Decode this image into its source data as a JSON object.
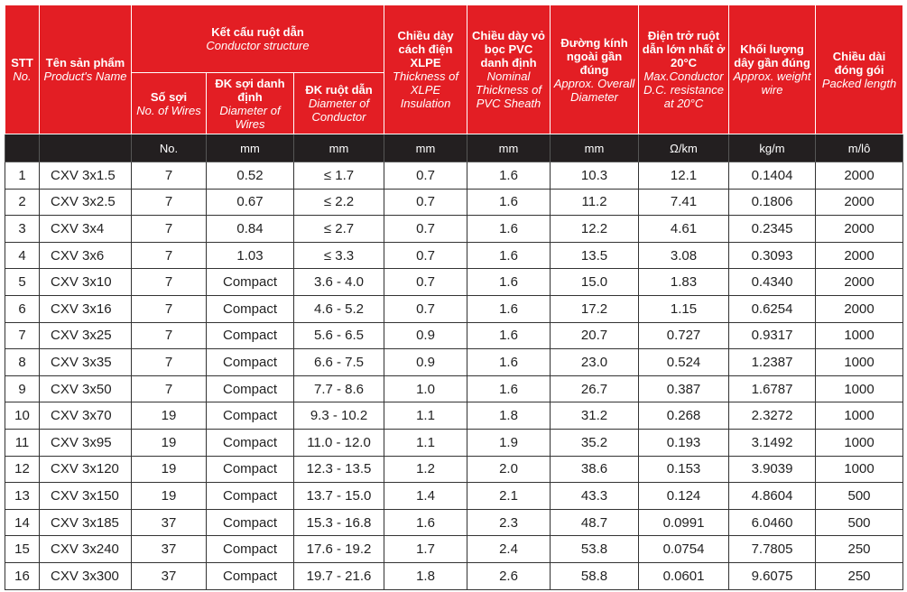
{
  "header": {
    "stt": {
      "vi": "STT",
      "en": "No."
    },
    "name": {
      "vi": "Tên sản phẩm",
      "en": "Product's Name"
    },
    "conductor": {
      "vi": "Kết cấu ruột dẫn",
      "en": "Conductor structure"
    },
    "wires": {
      "vi": "Số sợi",
      "en": "No. of Wires"
    },
    "wire_dia": {
      "vi": "ĐK sợi danh định",
      "en": "Diameter of Wires"
    },
    "cond_dia": {
      "vi": "ĐK ruột dẫn",
      "en": "Diameter of Conductor"
    },
    "xlpe": {
      "vi": "Chiều dày cách điện XLPE",
      "en": "Thickness of XLPE Insulation"
    },
    "pvc": {
      "vi": "Chiều dày vỏ bọc PVC danh định",
      "en": "Nominal Thickness of PVC Sheath"
    },
    "overall": {
      "vi": "Đường kính ngoài gần đúng",
      "en": "Approx. Overall Diameter"
    },
    "resistance": {
      "vi": "Điện trở ruột dẫn lớn nhất ở 20°C",
      "en": "Max.Conductor D.C. resistance at 20°C"
    },
    "weight": {
      "vi": "Khối lượng dây gần đúng",
      "en": "Approx. weight wire"
    },
    "length": {
      "vi": "Chiều dài đóng gói",
      "en": "Packed length"
    }
  },
  "units": [
    "No.",
    "mm",
    "mm",
    "mm",
    "mm",
    "mm",
    "Ω/km",
    "kg/m",
    "m/lô"
  ],
  "table": {
    "rows": [
      [
        "1",
        "CXV 3x1.5",
        "7",
        "0.52",
        "≤ 1.7",
        "0.7",
        "1.6",
        "10.3",
        "12.1",
        "0.1404",
        "2000"
      ],
      [
        "2",
        "CXV 3x2.5",
        "7",
        "0.67",
        "≤ 2.2",
        "0.7",
        "1.6",
        "11.2",
        "7.41",
        "0.1806",
        "2000"
      ],
      [
        "3",
        "CXV 3x4",
        "7",
        "0.84",
        "≤ 2.7",
        "0.7",
        "1.6",
        "12.2",
        "4.61",
        "0.2345",
        "2000"
      ],
      [
        "4",
        "CXV 3x6",
        "7",
        "1.03",
        "≤ 3.3",
        "0.7",
        "1.6",
        "13.5",
        "3.08",
        "0.3093",
        "2000"
      ],
      [
        "5",
        "CXV 3x10",
        "7",
        "Compact",
        "3.6 - 4.0",
        "0.7",
        "1.6",
        "15.0",
        "1.83",
        "0.4340",
        "2000"
      ],
      [
        "6",
        "CXV 3x16",
        "7",
        "Compact",
        "4.6 - 5.2",
        "0.7",
        "1.6",
        "17.2",
        "1.15",
        "0.6254",
        "2000"
      ],
      [
        "7",
        "CXV 3x25",
        "7",
        "Compact",
        "5.6 - 6.5",
        "0.9",
        "1.6",
        "20.7",
        "0.727",
        "0.9317",
        "1000"
      ],
      [
        "8",
        "CXV 3x35",
        "7",
        "Compact",
        "6.6 - 7.5",
        "0.9",
        "1.6",
        "23.0",
        "0.524",
        "1.2387",
        "1000"
      ],
      [
        "9",
        "CXV 3x50",
        "7",
        "Compact",
        "7.7 - 8.6",
        "1.0",
        "1.6",
        "26.7",
        "0.387",
        "1.6787",
        "1000"
      ],
      [
        "10",
        "CXV 3x70",
        "19",
        "Compact",
        "9.3 - 10.2",
        "1.1",
        "1.8",
        "31.2",
        "0.268",
        "2.3272",
        "1000"
      ],
      [
        "11",
        "CXV 3x95",
        "19",
        "Compact",
        "11.0 - 12.0",
        "1.1",
        "1.9",
        "35.2",
        "0.193",
        "3.1492",
        "1000"
      ],
      [
        "12",
        "CXV 3x120",
        "19",
        "Compact",
        "12.3 - 13.5",
        "1.2",
        "2.0",
        "38.6",
        "0.153",
        "3.9039",
        "1000"
      ],
      [
        "13",
        "CXV 3x150",
        "19",
        "Compact",
        "13.7 - 15.0",
        "1.4",
        "2.1",
        "43.3",
        "0.124",
        "4.8604",
        "500"
      ],
      [
        "14",
        "CXV 3x185",
        "37",
        "Compact",
        "15.3 - 16.8",
        "1.6",
        "2.3",
        "48.7",
        "0.0991",
        "6.0460",
        "500"
      ],
      [
        "15",
        "CXV 3x240",
        "37",
        "Compact",
        "17.6 - 19.2",
        "1.7",
        "2.4",
        "53.8",
        "0.0754",
        "7.7805",
        "250"
      ],
      [
        "16",
        "CXV 3x300",
        "37",
        "Compact",
        "19.7 - 21.6",
        "1.8",
        "2.6",
        "58.8",
        "0.0601",
        "9.6075",
        "250"
      ]
    ]
  }
}
